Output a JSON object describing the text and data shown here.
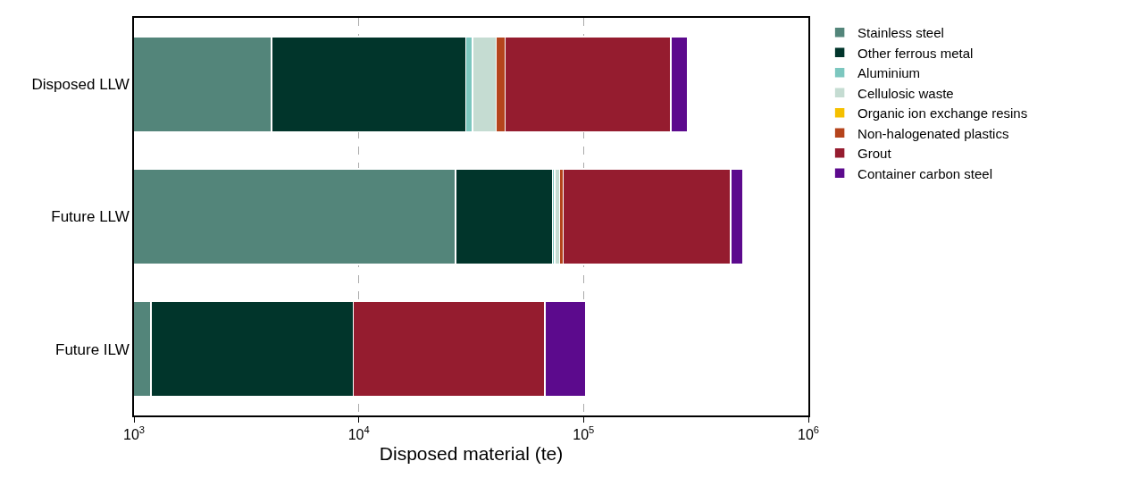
{
  "chart_data": {
    "type": "bar",
    "orientation": "horizontal",
    "stacked": true,
    "log": "x",
    "xlabel": "Disposed material (te)",
    "categories": [
      "Disposed LLW",
      "Future LLW",
      "Future ILW"
    ],
    "xlim": [
      1000,
      1000000
    ],
    "xticks": [
      {
        "value": 1000,
        "label": "10$^{3}$"
      },
      {
        "value": 10000,
        "label": "10$^{4}$"
      },
      {
        "value": 100000,
        "label": "10$^{5}$"
      },
      {
        "value": 1000000,
        "label": "10$^{6}$"
      }
    ],
    "grid": "x",
    "legend": "top right",
    "series": [
      {
        "name": "Stainless steel",
        "color": "#53857a",
        "values": [
          4100,
          27000,
          1190
        ]
      },
      {
        "name": "Other ferrous metal",
        "color": "#01352b",
        "values": [
          25800,
          45800,
          8240
        ]
      },
      {
        "name": "Aluminium",
        "color": "#7cc7bf",
        "values": [
          2200,
          1500,
          null
        ]
      },
      {
        "name": "Cellulosic waste",
        "color": "#c5dcd2",
        "values": [
          8800,
          3800,
          null
        ]
      },
      {
        "name": "Organic ion exchange resins",
        "color": "#f5c000",
        "values": [
          null,
          null,
          null
        ]
      },
      {
        "name": "Non-halogenated plastics",
        "color": "#b5441c",
        "values": [
          3900,
          3000,
          null
        ]
      },
      {
        "name": "Grout",
        "color": "#951c2f",
        "values": [
          200000,
          369000,
          57900
        ]
      },
      {
        "name": "Container carbon steel",
        "color": "#5c0a8d",
        "values": [
          46000,
          60000,
          34800
        ]
      }
    ]
  }
}
